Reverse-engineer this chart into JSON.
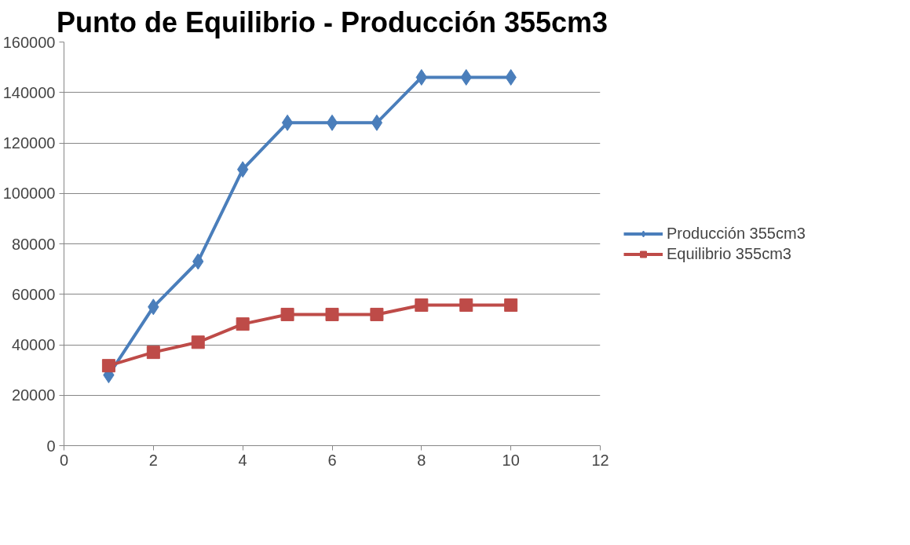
{
  "chart_data": {
    "type": "line",
    "title": "Punto de Equilibrio - Producción 355cm3",
    "x": [
      1,
      2,
      3,
      4,
      5,
      6,
      7,
      8,
      9,
      10
    ],
    "series": [
      {
        "name": "Producción 355cm3",
        "color": "#4a7ebb",
        "marker": "diamond",
        "values": [
          28000,
          55000,
          73000,
          109500,
          128000,
          128000,
          128000,
          146000,
          146000,
          146000
        ]
      },
      {
        "name": "Equilibrio 355cm3",
        "color": "#be4b48",
        "marker": "square",
        "values": [
          31700,
          37000,
          41000,
          48200,
          52000,
          52000,
          52000,
          55700,
          55700,
          55700
        ]
      }
    ],
    "xlim": [
      0,
      12
    ],
    "xticks": [
      0,
      2,
      4,
      6,
      8,
      10,
      12
    ],
    "ylim": [
      0,
      160000
    ],
    "yticks": [
      0,
      20000,
      40000,
      60000,
      80000,
      100000,
      120000,
      140000,
      160000
    ],
    "grid": "y",
    "legend": "right",
    "line_style": "solid"
  }
}
